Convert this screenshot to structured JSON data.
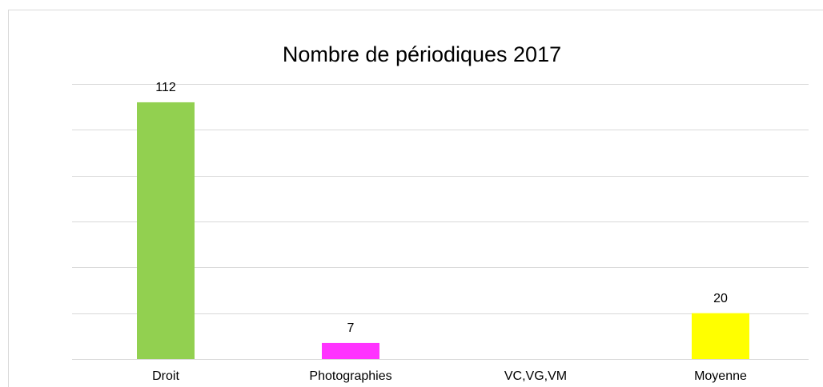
{
  "chart_data": {
    "type": "bar",
    "title": "Nombre de périodiques 2017",
    "categories": [
      "Droit",
      "Photographies",
      "VC,VG,VM",
      "Moyenne"
    ],
    "values": [
      112,
      7,
      null,
      20
    ],
    "colors": [
      "#92d050",
      "#ff33ff",
      null,
      "#ffff00"
    ],
    "ylim": [
      0,
      120
    ],
    "yticks": [
      0,
      20,
      40,
      60,
      80,
      100,
      120
    ],
    "grid": true
  }
}
